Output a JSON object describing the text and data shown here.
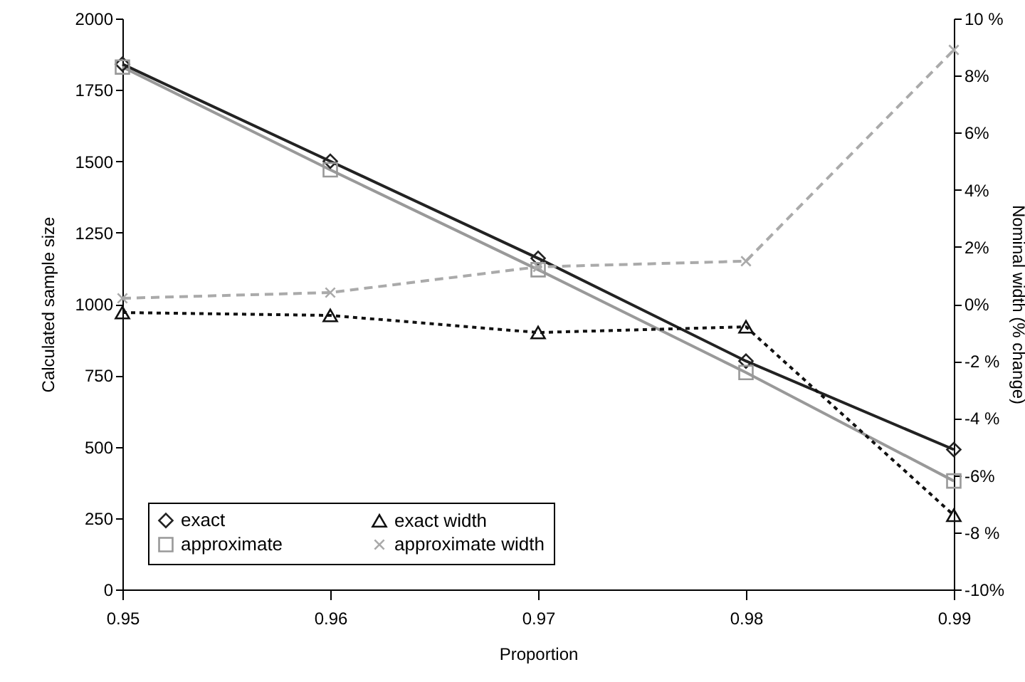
{
  "chart_data": {
    "type": "line",
    "xlabel": "Proportion",
    "ylabel": "Calculated sample size",
    "y2label": "Nominal width (% change)",
    "x": [
      0.95,
      0.96,
      0.97,
      0.98,
      0.99
    ],
    "xlim": [
      0.95,
      0.99
    ],
    "xticks": [
      0.95,
      0.96,
      0.97,
      0.98,
      0.99
    ],
    "ylim": [
      0,
      2000
    ],
    "yticks": [
      0,
      250,
      500,
      750,
      1000,
      1250,
      1500,
      1750,
      2000
    ],
    "y2lim": [
      -10,
      10
    ],
    "y2ticks": [
      {
        "value": 10,
        "label": "10 %"
      },
      {
        "value": 8,
        "label": "8%"
      },
      {
        "value": 6,
        "label": "6%"
      },
      {
        "value": 4,
        "label": "4%"
      },
      {
        "value": 2,
        "label": "2%"
      },
      {
        "value": 0,
        "label": "0%"
      },
      {
        "value": -2,
        "label": "-2 %"
      },
      {
        "value": -4,
        "label": "-4 %"
      },
      {
        "value": -6,
        "label": "-6%"
      },
      {
        "value": -8,
        "label": "-8 %"
      },
      {
        "value": -10,
        "label": "-10%"
      }
    ],
    "grid": false,
    "legend": "bottom left",
    "series": [
      {
        "name": "exact",
        "color": "#222222",
        "values": [
          1840,
          1500,
          1160,
          800,
          490
        ],
        "marker": "diamond",
        "line_style": "solid"
      },
      {
        "name": "approximate",
        "color": "#999999",
        "values": [
          1830,
          1470,
          1120,
          760,
          380
        ],
        "marker": "square",
        "line_style": "solid"
      },
      {
        "name": "exact width",
        "color": "#111111",
        "values": [
          -0.3,
          -0.4,
          -1.0,
          -0.8,
          -7.4
        ],
        "marker": "triangle",
        "line_style": "dotted",
        "axis": "y2"
      },
      {
        "name": "approximate width",
        "color": "#aaaaaa",
        "values": [
          0.2,
          0.4,
          1.3,
          1.5,
          8.9
        ],
        "marker": "cross",
        "line_style": "dashed",
        "axis": "y2"
      }
    ]
  }
}
